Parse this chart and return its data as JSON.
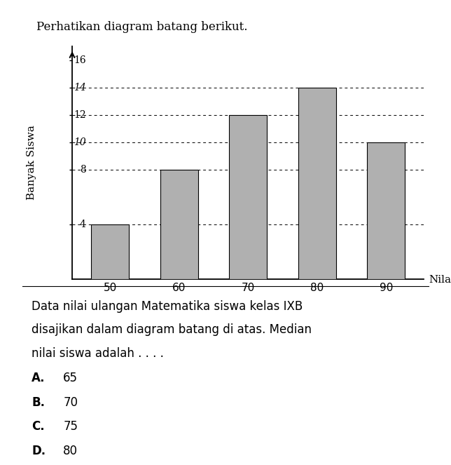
{
  "title": "Perhatikan diagram batang berikut.",
  "categories": [
    50,
    60,
    70,
    80,
    90
  ],
  "values": [
    4,
    8,
    12,
    14,
    10
  ],
  "bar_color": "#b0b0b0",
  "bar_edge_color": "#000000",
  "ylabel": "Banyak Siswa",
  "xlabel": "Nilai",
  "ylim": [
    0,
    17
  ],
  "ytick_positions": [
    4,
    8,
    10,
    12,
    14,
    16
  ],
  "dashed_lines": [
    4,
    8,
    10,
    12,
    14
  ],
  "handwritten_ticks": [
    10,
    14
  ],
  "question_text_line1": "Data nilai ulangan Matematika siswa kelas IXB",
  "question_text_line2": "disajikan dalam diagram batang di atas. Median",
  "question_text_line3": "nilai siswa adalah . . . .",
  "options": [
    [
      "A.",
      "65"
    ],
    [
      "B.",
      "70"
    ],
    [
      "C.",
      "75"
    ],
    [
      "D.",
      "80"
    ]
  ],
  "fig_width": 6.44,
  "fig_height": 6.63,
  "background_color": "#ffffff"
}
